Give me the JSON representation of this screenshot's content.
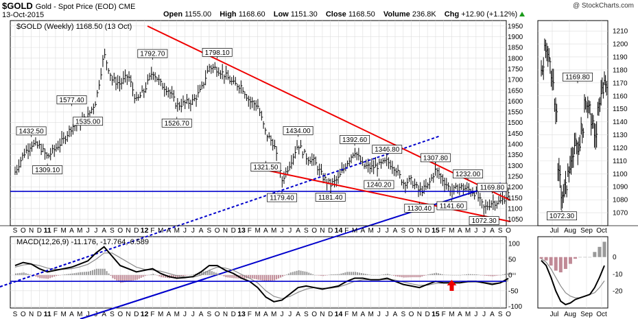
{
  "header": {
    "symbol": "$GOLD",
    "description": "Gold - Spot Price (EOD)",
    "exchange": "CME",
    "date": "13-Oct-2015",
    "watermark": "@ StockCharts.com",
    "quote": {
      "open_label": "Open",
      "open": "1155.00",
      "high_label": "High",
      "high": "1168.60",
      "low_label": "Low",
      "low": "1151.30",
      "close_label": "Close",
      "close": "1168.50",
      "volume_label": "Volume",
      "volume": "236.8K",
      "chg_label": "Chg",
      "chg": "+12.90 (+1.12%)"
    }
  },
  "colors": {
    "price": "#000000",
    "trend_red": "#ee0000",
    "trend_blue": "#0000cc",
    "hist_pos": "#999999",
    "hist_neg": "#c08a96",
    "grid": "#dddddd",
    "arrow": "#ee0000"
  },
  "chart_data": [
    {
      "type": "line",
      "panel": "main-weekly",
      "legend": "$GOLD (Weekly) 1168.50 (13 Oct)",
      "legend_placement": "top-left",
      "ylim": [
        1020,
        1975
      ],
      "y_ticks": [
        1050,
        1100,
        1150,
        1200,
        1250,
        1300,
        1350,
        1400,
        1450,
        1500,
        1550,
        1600,
        1650,
        1700,
        1750,
        1800,
        1850,
        1900,
        1950
      ],
      "x_tick_labels": [
        "S",
        "O",
        "N",
        "D",
        "11",
        "F",
        "M",
        "A",
        "M",
        "J",
        "J",
        "A",
        "S",
        "O",
        "N",
        "D",
        "12",
        "F",
        "M",
        "A",
        "M",
        "J",
        "J",
        "A",
        "S",
        "O",
        "N",
        "D",
        "13",
        "F",
        "M",
        "A",
        "M",
        "J",
        "J",
        "A",
        "S",
        "O",
        "N",
        "D",
        "14",
        "F",
        "M",
        "A",
        "M",
        "J",
        "J",
        "A",
        "S",
        "O",
        "N",
        "D",
        "15",
        "F",
        "M",
        "A",
        "M",
        "J",
        "J",
        "A",
        "S",
        "O"
      ],
      "grid": true,
      "x": [
        "2010-09",
        "2010-10",
        "2010-11",
        "2010-12",
        "2011-01",
        "2011-02",
        "2011-03",
        "2011-04",
        "2011-05",
        "2011-06",
        "2011-07",
        "2011-08",
        "2011-09",
        "2011-10",
        "2011-11",
        "2011-12",
        "2012-01",
        "2012-02",
        "2012-03",
        "2012-04",
        "2012-05",
        "2012-06",
        "2012-07",
        "2012-08",
        "2012-09",
        "2012-10",
        "2012-11",
        "2012-12",
        "2013-01",
        "2013-02",
        "2013-03",
        "2013-04",
        "2013-05",
        "2013-06",
        "2013-07",
        "2013-08",
        "2013-09",
        "2013-10",
        "2013-11",
        "2013-12",
        "2014-01",
        "2014-02",
        "2014-03",
        "2014-04",
        "2014-05",
        "2014-06",
        "2014-07",
        "2014-08",
        "2014-09",
        "2014-10",
        "2014-11",
        "2014-12",
        "2015-01",
        "2015-02",
        "2015-03",
        "2015-04",
        "2015-05",
        "2015-06",
        "2015-07",
        "2015-08",
        "2015-09",
        "2015-10"
      ],
      "series": [
        {
          "values": [
            1270,
            1350,
            1400,
            1390,
            1340,
            1380,
            1420,
            1480,
            1500,
            1530,
            1600,
            1820,
            1700,
            1680,
            1720,
            1600,
            1650,
            1740,
            1680,
            1650,
            1580,
            1590,
            1600,
            1650,
            1760,
            1750,
            1720,
            1680,
            1670,
            1600,
            1580,
            1450,
            1400,
            1230,
            1310,
            1400,
            1340,
            1320,
            1250,
            1210,
            1240,
            1310,
            1370,
            1300,
            1290,
            1300,
            1320,
            1290,
            1220,
            1230,
            1180,
            1200,
            1280,
            1230,
            1180,
            1200,
            1190,
            1170,
            1100,
            1130,
            1130,
            1168
          ]
        }
      ],
      "annotations": [
        {
          "label": "1432.50",
          "x": "2010-11"
        },
        {
          "label": "1309.10",
          "x": "2011-01"
        },
        {
          "label": "1577.40",
          "x": "2011-04"
        },
        {
          "label": "1535.00",
          "x": "2011-06"
        },
        {
          "label": "1792.70",
          "x": "2012-02"
        },
        {
          "label": "1526.70",
          "x": "2012-05"
        },
        {
          "label": "1798.10",
          "x": "2012-10"
        },
        {
          "label": "1321.50",
          "x": "2013-04"
        },
        {
          "label": "1434.00",
          "x": "2013-08"
        },
        {
          "label": "1179.40",
          "x": "2013-06"
        },
        {
          "label": "1181.40",
          "x": "2013-12"
        },
        {
          "label": "1392.60",
          "x": "2014-03"
        },
        {
          "label": "1346.80",
          "x": "2014-07"
        },
        {
          "label": "1240.20",
          "x": "2014-06"
        },
        {
          "label": "1307.80",
          "x": "2015-01"
        },
        {
          "label": "1130.40",
          "x": "2014-11"
        },
        {
          "label": "1141.60",
          "x": "2015-03"
        },
        {
          "label": "1232.00",
          "x": "2015-05"
        },
        {
          "label": "1169.80",
          "x": "2015-08"
        },
        {
          "label": "1072.30",
          "x": "2015-07"
        }
      ],
      "horizontal_line": 1180
    },
    {
      "type": "line",
      "panel": "main-daily-inset",
      "ylim": [
        1060,
        1218
      ],
      "y_ticks": [
        1070,
        1080,
        1090,
        1100,
        1110,
        1120,
        1130,
        1140,
        1150,
        1160,
        1170,
        1180,
        1190,
        1200,
        1210
      ],
      "x_tick_labels": [
        "Jul",
        "Aug",
        "Sep",
        "Oct"
      ],
      "series": [
        {
          "values": [
            1180,
            1195,
            1190,
            1170,
            1150,
            1100,
            1085,
            1090,
            1105,
            1110,
            1125,
            1120,
            1135,
            1155,
            1150,
            1140,
            1130,
            1150,
            1165,
            1168
          ]
        }
      ],
      "annotations": [
        {
          "label": "1169.80",
          "x": "Aug"
        },
        {
          "label": "1072.30",
          "x": "Jul"
        }
      ]
    },
    {
      "type": "line",
      "panel": "macd-weekly",
      "legend": "MACD(12,26,9) -11.176, -17.764, 6.589",
      "ylim": [
        -105,
        122
      ],
      "y_ticks": [
        -100,
        -50,
        0,
        50,
        100
      ],
      "series": [
        {
          "name": "MACD",
          "values": [
            30,
            40,
            35,
            20,
            10,
            15,
            20,
            25,
            35,
            45,
            70,
            90,
            60,
            30,
            20,
            10,
            15,
            20,
            5,
            -5,
            -10,
            -8,
            -5,
            10,
            30,
            30,
            15,
            5,
            -10,
            -20,
            -40,
            -70,
            -85,
            -80,
            -60,
            -40,
            -35,
            -40,
            -45,
            -40,
            -35,
            -20,
            -10,
            -10,
            -15,
            -15,
            -10,
            -20,
            -30,
            -35,
            -40,
            -30,
            -20,
            -25,
            -25,
            -25,
            -20,
            -20,
            -25,
            -30,
            -25,
            -11
          ]
        },
        {
          "name": "Signal",
          "values": [
            25,
            32,
            35,
            30,
            22,
            18,
            18,
            20,
            26,
            34,
            50,
            70,
            70,
            55,
            40,
            25,
            18,
            16,
            12,
            5,
            -2,
            -6,
            -7,
            0,
            15,
            25,
            22,
            15,
            2,
            -10,
            -25,
            -50,
            -68,
            -75,
            -68,
            -55,
            -45,
            -40,
            -42,
            -42,
            -38,
            -30,
            -20,
            -15,
            -15,
            -15,
            -14,
            -16,
            -22,
            -28,
            -33,
            -32,
            -27,
            -26,
            -25,
            -25,
            -23,
            -22,
            -23,
            -26,
            -25,
            -18
          ]
        },
        {
          "name": "Histogram",
          "values": [
            5,
            8,
            0,
            -10,
            -12,
            -3,
            2,
            5,
            9,
            11,
            20,
            20,
            -10,
            -25,
            -20,
            -15,
            -3,
            4,
            -7,
            -10,
            -8,
            -2,
            2,
            10,
            15,
            5,
            -7,
            -10,
            -12,
            -10,
            -15,
            -20,
            -17,
            -5,
            8,
            15,
            10,
            0,
            -3,
            2,
            3,
            10,
            10,
            5,
            0,
            0,
            4,
            -4,
            -8,
            -7,
            -7,
            2,
            7,
            1,
            0,
            0,
            3,
            2,
            -2,
            -4,
            0,
            7
          ]
        }
      ],
      "horizontal_line": -20,
      "annotation_arrow": "2015-03"
    },
    {
      "type": "line",
      "panel": "macd-daily-inset",
      "ylim": [
        -30,
        12
      ],
      "y_ticks": [
        -20,
        -10,
        0
      ],
      "series": [
        {
          "name": "MACD",
          "values": [
            -2,
            -5,
            -12,
            -20,
            -26,
            -28,
            -27,
            -25,
            -24,
            -23,
            -22,
            -18,
            -12,
            -5
          ]
        },
        {
          "name": "Signal",
          "values": [
            -1,
            -3,
            -7,
            -12,
            -17,
            -21,
            -23,
            -24,
            -24,
            -23,
            -22,
            -21,
            -18,
            -14
          ]
        },
        {
          "name": "Histogram",
          "values": [
            -1,
            -2,
            -5,
            -8,
            -9,
            -7,
            -4,
            -1,
            0,
            0,
            0,
            3,
            6,
            9
          ]
        }
      ]
    }
  ]
}
